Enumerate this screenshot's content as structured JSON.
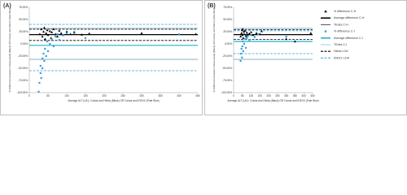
{
  "chart_data": [
    {
      "type": "scatter",
      "panel_label": "(A)",
      "y_label": "% Difference between Cobas-Hieda (Black) OR Cobas and IDEXX (Pale Blue)",
      "x_label": "Average ALT (U/L): Cobas and Hieda (Black) OR Cobas and IDEXX (Pale Blue)",
      "xlim": [
        0,
        450
      ],
      "xticks": [
        0,
        50,
        100,
        150,
        200,
        250,
        300,
        350,
        400,
        450
      ],
      "ylim": [
        -100,
        75
      ],
      "yticks": [
        {
          "value": 75,
          "label": "75.00%"
        },
        {
          "value": 50,
          "label": "50.00%"
        },
        {
          "value": 25,
          "label": "25.00%"
        },
        {
          "value": 0,
          "label": "0.00%"
        },
        {
          "value": -25,
          "label": "-25.00%"
        },
        {
          "value": -50,
          "label": "-50.00%"
        },
        {
          "value": -75,
          "label": "-75.00%"
        },
        {
          "value": -100,
          "label": "-100.00%"
        }
      ],
      "series": [
        {
          "kind": "points",
          "marker": "triangle",
          "color": "#000000",
          "x": [
            28,
            32,
            35,
            38,
            40,
            42,
            45,
            48,
            50,
            55,
            58,
            60,
            65,
            70,
            75,
            80,
            85,
            90,
            100,
            110,
            120,
            140,
            160,
            300,
            445
          ],
          "values": [
            20,
            30,
            15,
            25,
            33,
            10,
            22,
            28,
            18,
            26,
            12,
            24,
            30,
            20,
            15,
            27,
            22,
            18,
            25,
            20,
            23,
            19,
            21,
            22,
            20
          ]
        },
        {
          "kind": "line",
          "color": "#000000",
          "width": 1.2,
          "values": [
            19
          ]
        },
        {
          "kind": "line",
          "color": "#555555",
          "width": 0.8,
          "values": [
            32,
            -32
          ]
        },
        {
          "kind": "points",
          "marker": "square",
          "color": "#3aa0d8",
          "x": [
            25,
            27,
            30,
            30,
            32,
            35,
            35,
            38,
            40,
            42,
            45,
            48,
            50,
            55,
            60,
            65,
            70,
            75,
            80,
            90,
            100,
            120,
            150,
            400
          ],
          "values": [
            -98,
            -80,
            -60,
            -45,
            -70,
            -30,
            -50,
            -20,
            -35,
            -10,
            -25,
            5,
            -15,
            0,
            10,
            -5,
            15,
            20,
            8,
            18,
            22,
            25,
            12,
            20
          ]
        },
        {
          "kind": "line",
          "color": "#22b0c8",
          "width": 1.2,
          "values": [
            -3
          ]
        },
        {
          "kind": "line",
          "color": "#9fd3e6",
          "width": 0.8,
          "values": [
            32,
            -32
          ]
        },
        {
          "kind": "line",
          "color": "#000000",
          "width": 0.8,
          "dash": true,
          "values": [
            30,
            7
          ]
        },
        {
          "kind": "line",
          "color": "#3aa0d8",
          "width": 0.8,
          "dash": true,
          "values": [
            40,
            -55
          ]
        }
      ]
    },
    {
      "type": "scatter",
      "panel_label": "(B)",
      "y_label": "% Difference between Cobas-Hieda (Black) OR Cobas and IDEXX (Pale Blue)",
      "x_label": "Average ALT (U/L): Cobas and Hieda (Black) OR Cobas and IDEXX (Pale Blue)",
      "xlim": [
        0,
        450
      ],
      "xticks": [
        0,
        50,
        100,
        150,
        200,
        250,
        300,
        350,
        400,
        450
      ],
      "ylim": [
        -100,
        75
      ],
      "yticks": [
        {
          "value": 75,
          "label": "75.00%"
        },
        {
          "value": 50,
          "label": "50.00%"
        },
        {
          "value": 25,
          "label": "25.00%"
        },
        {
          "value": 0,
          "label": "0.00%"
        },
        {
          "value": -25,
          "label": "-25.00%"
        },
        {
          "value": -50,
          "label": "-50.00%"
        },
        {
          "value": -75,
          "label": "-75.00%"
        },
        {
          "value": -100,
          "label": "-100.00%"
        }
      ],
      "series": [
        {
          "name": "% difference C-H",
          "kind": "points",
          "marker": "triangle",
          "color": "#000000",
          "x": [
            40,
            45,
            48,
            50,
            52,
            55,
            58,
            60,
            65,
            70,
            75,
            80,
            90,
            100,
            110,
            130,
            150,
            160,
            300,
            350,
            440
          ],
          "values": [
            15,
            22,
            28,
            18,
            30,
            12,
            25,
            20,
            27,
            16,
            23,
            19,
            21,
            24,
            18,
            22,
            20,
            26,
            10,
            5,
            22
          ]
        },
        {
          "name": "Average difference C-H",
          "kind": "line",
          "color": "#000000",
          "width": 1.2,
          "values": [
            19
          ]
        },
        {
          "name": "TEdes C-H",
          "kind": "line",
          "color": "#555555",
          "width": 0.8,
          "values": [
            32,
            -32
          ]
        },
        {
          "name": "% difference C-I",
          "kind": "points",
          "marker": "square",
          "color": "#3aa0d8",
          "x": [
            40,
            42,
            45,
            48,
            50,
            52,
            55,
            60,
            65,
            70,
            75,
            80,
            90,
            100,
            120,
            140,
            300
          ],
          "values": [
            -35,
            -20,
            -10,
            -28,
            -5,
            5,
            -15,
            0,
            10,
            -8,
            12,
            15,
            8,
            18,
            14,
            20,
            15
          ]
        },
        {
          "name": "Average difference C-I",
          "kind": "line",
          "color": "#22b0c8",
          "width": 1.2,
          "values": [
            5
          ]
        },
        {
          "name": "TEdes C-I",
          "kind": "line",
          "color": "#9fd3e6",
          "width": 0.8,
          "values": [
            32,
            -32
          ]
        },
        {
          "name": "Hieda LOA",
          "kind": "line",
          "color": "#000000",
          "width": 0.8,
          "dash": true,
          "values": [
            29,
            9
          ]
        },
        {
          "name": "IDEXX LOA",
          "kind": "line",
          "color": "#3aa0d8",
          "width": 0.8,
          "dash": true,
          "values": [
            27,
            -20
          ]
        }
      ]
    }
  ]
}
